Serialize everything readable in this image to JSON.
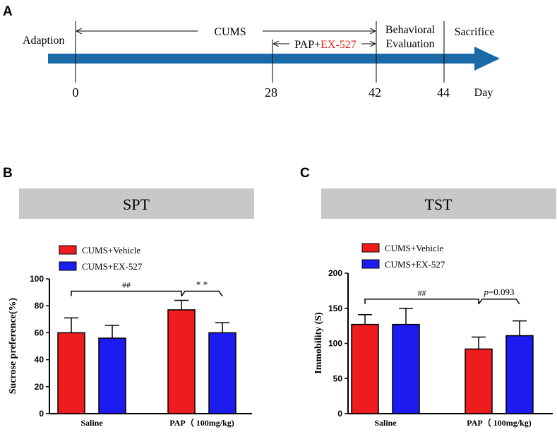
{
  "panels": {
    "a": "A",
    "b": "B",
    "c": "C"
  },
  "timeline": {
    "adaption": "Adaption",
    "cums": "CUMS",
    "pap_prefix": "PAP+",
    "pap_drug": "EX-527",
    "behavioral_line1": "Behavioral",
    "behavioral_line2": "Evaluation",
    "sacrifice": "Sacrifice",
    "days": [
      "0",
      "28",
      "42",
      "44"
    ],
    "day_unit": "Day",
    "colors": {
      "arrow": "#1a6aa8",
      "drug": "#e8201a"
    }
  },
  "chart_data": [
    {
      "type": "bar",
      "header": "SPT",
      "title": "SPT",
      "ylabel": "Sucrose preference(%)",
      "xlabel": "",
      "ylim": [
        0,
        100
      ],
      "yticks": [
        0,
        20,
        40,
        60,
        80,
        100
      ],
      "categories": [
        "Saline",
        "PAP（ 100mg/kg)"
      ],
      "series": [
        {
          "name": "CUMS+Vehicle",
          "color": "#ee1c1c",
          "values": [
            60,
            77
          ],
          "errors": [
            11,
            7
          ]
        },
        {
          "name": "CUMS+EX-527",
          "color": "#1c1cf0",
          "values": [
            56,
            60
          ],
          "errors": [
            9.5,
            7.5
          ]
        }
      ],
      "annotations": {
        "group": "##",
        "pair": "* *",
        "pair_prefix": "",
        "pair_suffix": ""
      },
      "legend": "top-left"
    },
    {
      "type": "bar",
      "header": "TST",
      "title": "TST",
      "ylabel": "Immobility (S)",
      "xlabel": "",
      "ylim": [
        0,
        200
      ],
      "yticks": [
        0,
        50,
        100,
        150,
        200
      ],
      "categories": [
        "Saline",
        "PAP（ 100mg/kg)"
      ],
      "series": [
        {
          "name": "CUMS+Vehicle",
          "color": "#ee1c1c",
          "values": [
            127,
            92
          ],
          "errors": [
            14,
            17
          ]
        },
        {
          "name": "CUMS+EX-527",
          "color": "#1c1cf0",
          "values": [
            127,
            111
          ],
          "errors": [
            23,
            21
          ]
        }
      ],
      "annotations": {
        "group": "##",
        "pair": "",
        "pair_prefix": "p",
        "pair_suffix": "=0.093"
      },
      "legend": "top-left"
    }
  ]
}
